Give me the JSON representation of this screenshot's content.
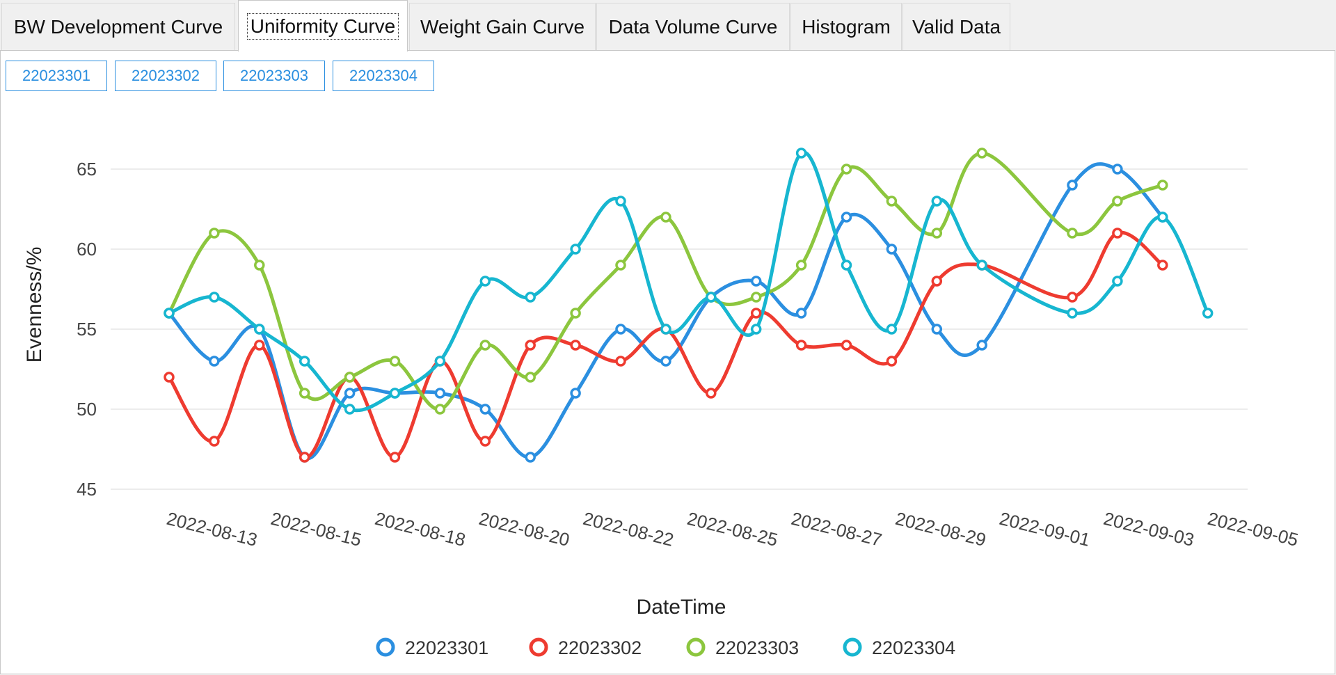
{
  "tabs": [
    {
      "label": "BW Development Curve",
      "active": false
    },
    {
      "label": "Uniformity Curve",
      "active": true
    },
    {
      "label": "Weight Gain Curve",
      "active": false
    },
    {
      "label": "Data Volume Curve",
      "active": false
    },
    {
      "label": "Histogram",
      "active": false
    },
    {
      "label": "Valid Data",
      "active": false
    }
  ],
  "series_buttons": [
    "22023301",
    "22023302",
    "22023303",
    "22023304"
  ],
  "chart_data": {
    "type": "line",
    "smooth": true,
    "title": "",
    "xlabel": "DateTime",
    "ylabel": "Evenness/%",
    "ylim": [
      45,
      65
    ],
    "yticks": [
      45,
      50,
      55,
      60,
      65
    ],
    "x_tick_labels": [
      "2022-08-13",
      "2022-08-15",
      "2022-08-18",
      "2022-08-20",
      "2022-08-22",
      "2022-08-25",
      "2022-08-27",
      "2022-08-29",
      "2022-09-01",
      "2022-09-03",
      "2022-09-05"
    ],
    "x_count": 25,
    "grid": true,
    "legend_position": "bottom-center",
    "series": [
      {
        "name": "22023301",
        "color": "#2b8fe0",
        "values": [
          56,
          53,
          55,
          47,
          51,
          51,
          51,
          50,
          47,
          51,
          55,
          53,
          57,
          58,
          56,
          62,
          60,
          55,
          54,
          null,
          64,
          65,
          62,
          null,
          null
        ]
      },
      {
        "name": "22023302",
        "color": "#ee3b30",
        "values": [
          52,
          48,
          54,
          47,
          52,
          47,
          53,
          48,
          54,
          54,
          53,
          55,
          51,
          56,
          54,
          54,
          53,
          58,
          59,
          null,
          57,
          61,
          59,
          null,
          null
        ]
      },
      {
        "name": "22023303",
        "color": "#8cc63e",
        "values": [
          56,
          61,
          59,
          51,
          52,
          53,
          50,
          54,
          52,
          56,
          59,
          62,
          57,
          57,
          59,
          65,
          63,
          61,
          66,
          null,
          61,
          63,
          64,
          null,
          null
        ]
      },
      {
        "name": "22023304",
        "color": "#17b6d0",
        "values": [
          56,
          57,
          55,
          53,
          50,
          51,
          53,
          58,
          57,
          60,
          63,
          55,
          57,
          55,
          66,
          59,
          55,
          63,
          59,
          null,
          56,
          58,
          62,
          56,
          null
        ]
      }
    ]
  }
}
